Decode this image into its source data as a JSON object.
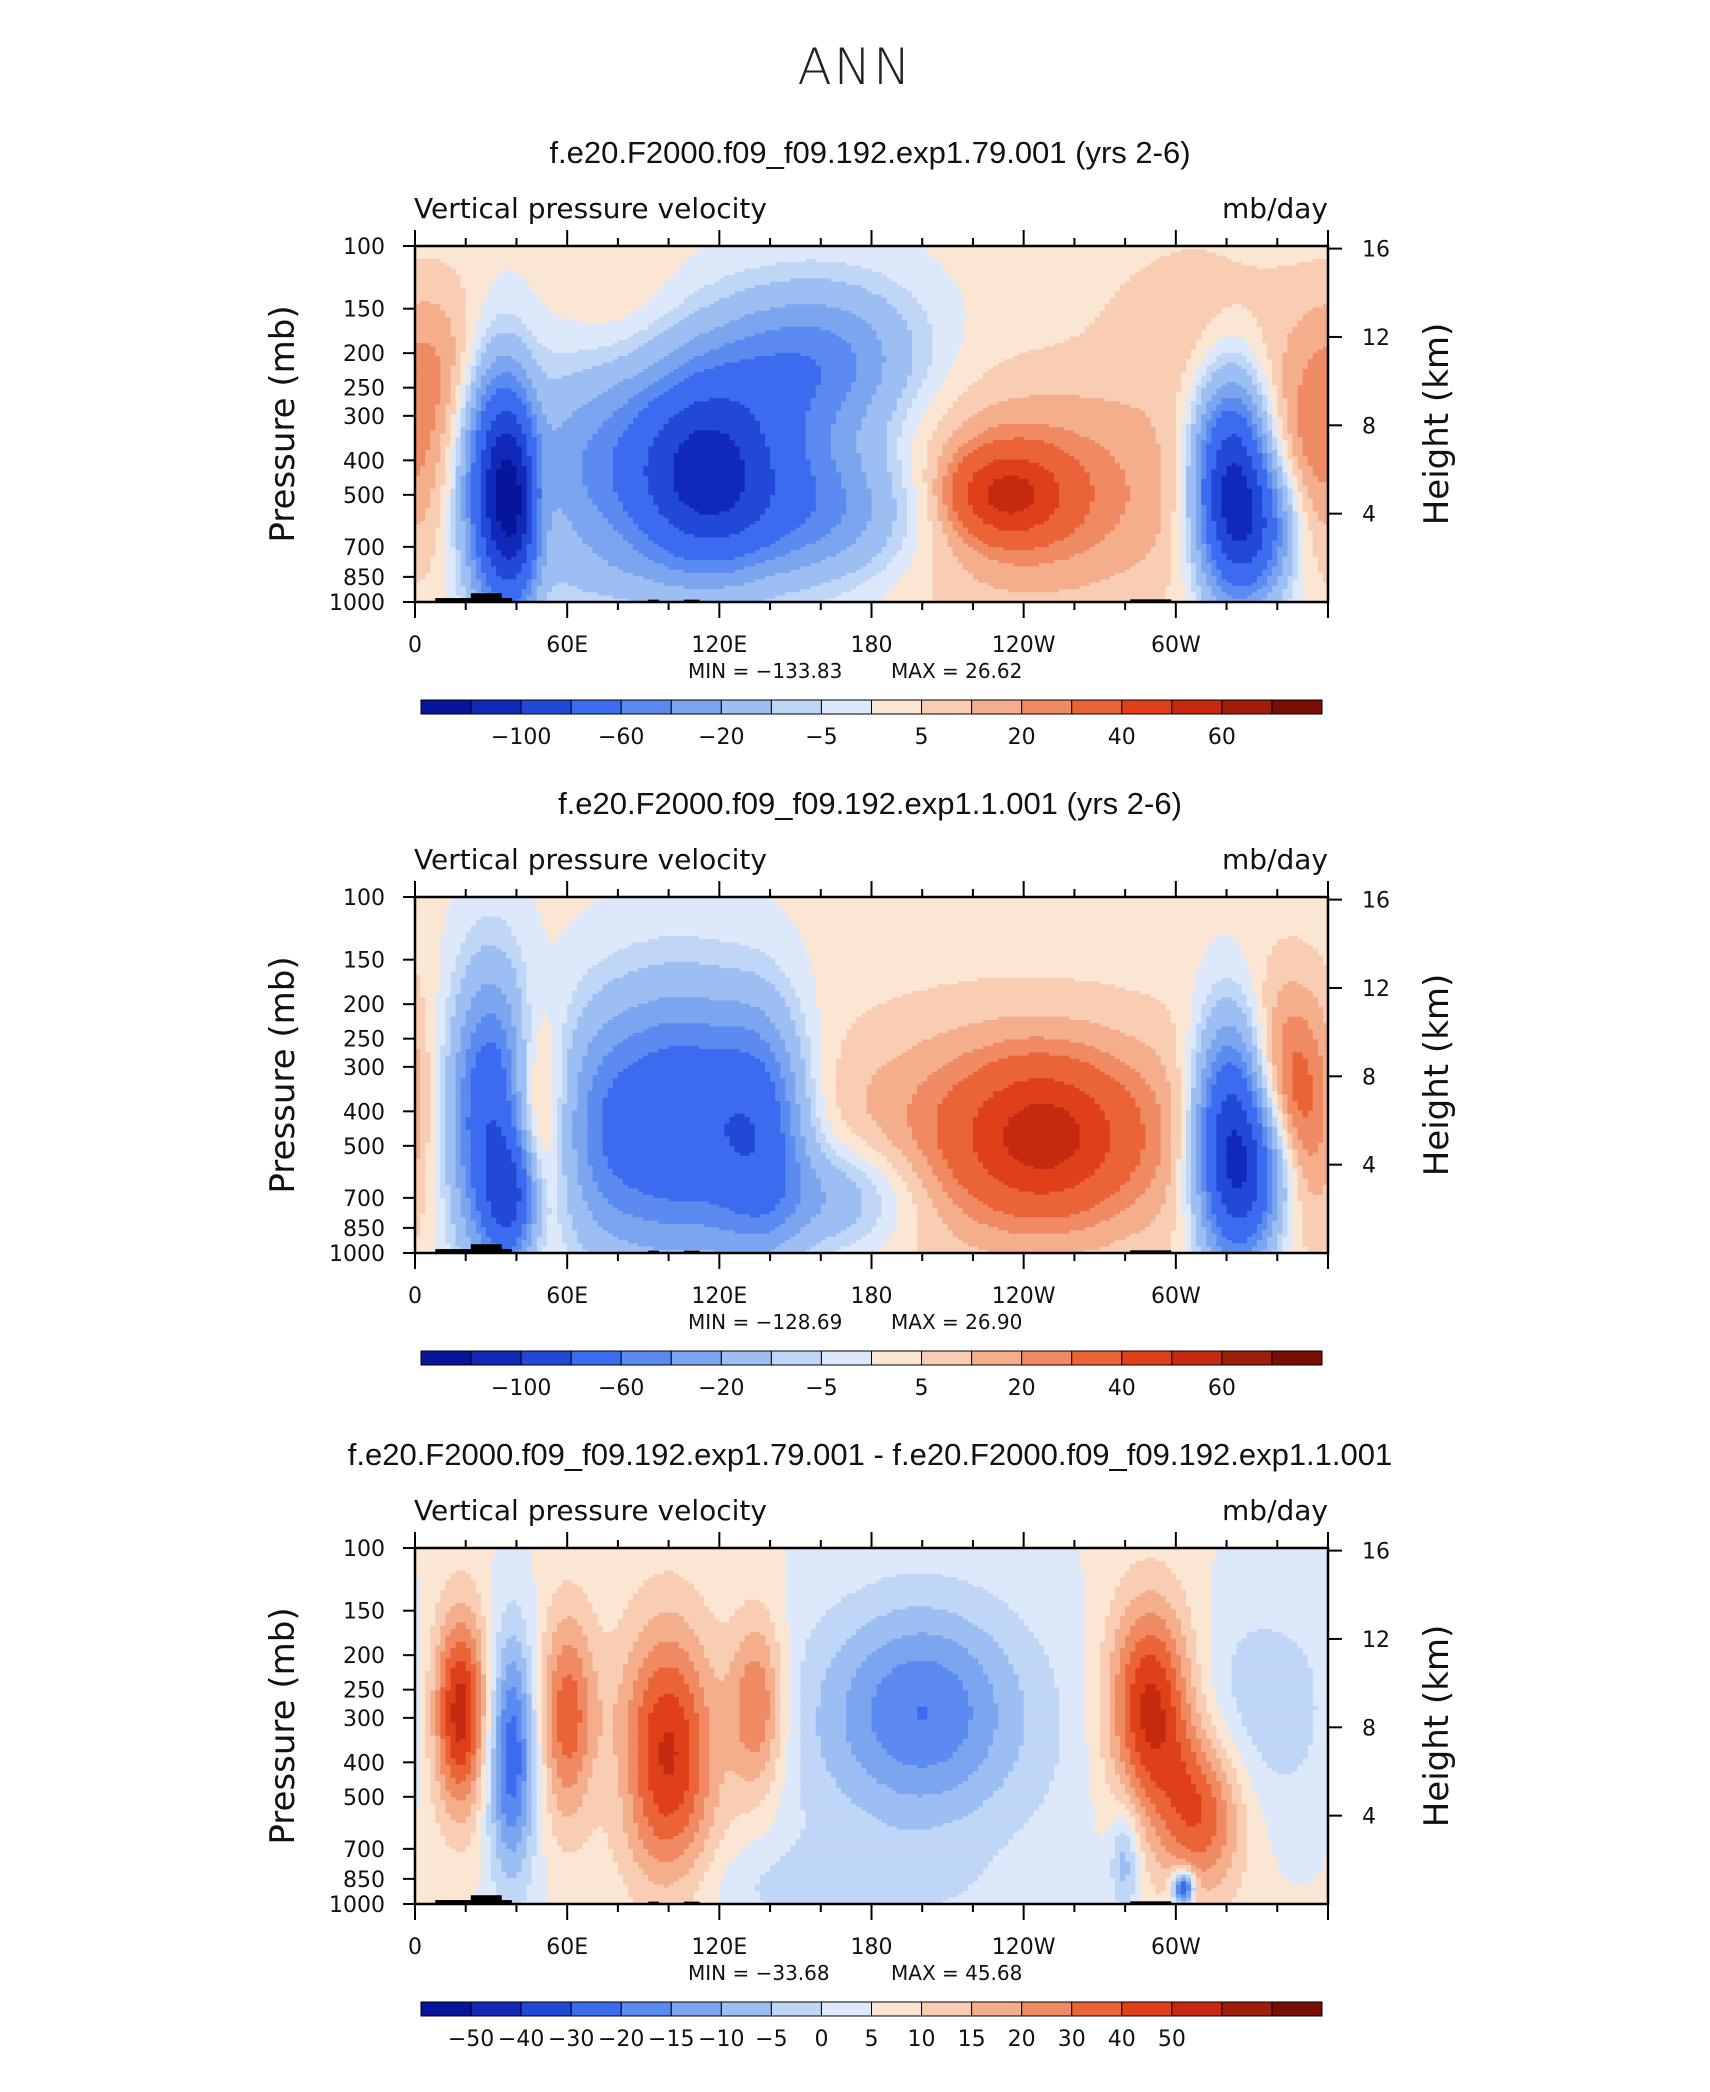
{
  "figure_title": "ANN",
  "colors": {
    "positive_scale": [
      "#fbe6d3",
      "#f8cdb3",
      "#f4ae8c",
      "#ef8a63",
      "#ea6437",
      "#e04019",
      "#c52a10",
      "#9e1e0a",
      "#780e04"
    ],
    "negative_scale": [
      "#dde9fb",
      "#bfd6f7",
      "#9cbef2",
      "#7ba5ee",
      "#5b8af0",
      "#3b6cf0",
      "#2248d8",
      "#1129b8",
      "#07159a"
    ],
    "topography": "#000000"
  },
  "chart_data": [
    {
      "type": "heatmap",
      "title": "f.e20.F2000.f09_f09.192.exp1.79.001 (yrs 2-6)",
      "variable": "Vertical pressure velocity",
      "units": "mb/day",
      "ylabel_left": "Pressure (mb)",
      "ylabel_right": "Height (km)",
      "pressure_ticks": [
        "100",
        "150",
        "200",
        "250",
        "300",
        "400",
        "500",
        "700",
        "850",
        "1000"
      ],
      "pressure_values": [
        100,
        150,
        200,
        250,
        300,
        400,
        500,
        700,
        850,
        1000
      ],
      "height_ticks": [
        "16",
        "12",
        "8",
        "4"
      ],
      "height_values": [
        16,
        12,
        8,
        4
      ],
      "lon_ticks": [
        "0",
        "60E",
        "120E",
        "180",
        "120W",
        "60W"
      ],
      "lon_values": [
        0,
        60,
        120,
        180,
        240,
        300
      ],
      "xlim": [
        0,
        360
      ],
      "ylim": [
        1000,
        100
      ],
      "min_text": "MIN  =  −133.83",
      "max_text": "MAX  =    26.62",
      "min": -133.83,
      "max": 26.62,
      "colorbar_labels": [
        "−100",
        "−60",
        "−20",
        "−5",
        "5",
        "20",
        "40",
        "60"
      ],
      "blobs": [
        {
          "lon": 33,
          "p": 480,
          "dl": 9,
          "dp": 330,
          "v": -78
        },
        {
          "lon": 42,
          "p": 560,
          "dl": 7,
          "dp": 270,
          "v": -52
        },
        {
          "lon": 48,
          "p": 520,
          "dl": 6,
          "dp": 250,
          "v": 24
        },
        {
          "lon": 8,
          "p": 230,
          "dl": 16,
          "dp": 130,
          "v": 13
        },
        {
          "lon": 100,
          "p": 420,
          "dl": 42,
          "dp": 250,
          "v": -42
        },
        {
          "lon": 115,
          "p": 440,
          "dl": 17,
          "dp": 210,
          "v": -48
        },
        {
          "lon": 160,
          "p": 560,
          "dl": 32,
          "dp": 210,
          "v": -30
        },
        {
          "lon": 145,
          "p": 230,
          "dl": 30,
          "dp": 100,
          "v": -22
        },
        {
          "lon": 165,
          "p": 200,
          "dl": 26,
          "dp": 80,
          "v": -18
        },
        {
          "lon": 238,
          "p": 500,
          "dl": 52,
          "dp": 340,
          "v": 19
        },
        {
          "lon": 233,
          "p": 500,
          "dl": 16,
          "dp": 110,
          "v": 27
        },
        {
          "lon": 322,
          "p": 480,
          "dl": 10,
          "dp": 280,
          "v": -92
        },
        {
          "lon": 335,
          "p": 630,
          "dl": 10,
          "dp": 230,
          "v": -40
        },
        {
          "lon": 348,
          "p": 450,
          "dl": 20,
          "dp": 280,
          "v": 15
        },
        {
          "lon": 83,
          "p": 160,
          "dl": 18,
          "dp": 60,
          "v": 5
        },
        {
          "lon": 310,
          "p": 160,
          "dl": 28,
          "dp": 80,
          "v": 7
        },
        {
          "lon": 75,
          "p": 830,
          "dl": 22,
          "dp": 150,
          "v": -5
        }
      ]
    },
    {
      "type": "heatmap",
      "title": "f.e20.F2000.f09_f09.192.exp1.1.001 (yrs 2-6)",
      "variable": "Vertical pressure velocity",
      "units": "mb/day",
      "ylabel_left": "Pressure (mb)",
      "ylabel_right": "Height (km)",
      "pressure_ticks": [
        "100",
        "150",
        "200",
        "250",
        "300",
        "400",
        "500",
        "700",
        "850",
        "1000"
      ],
      "pressure_values": [
        100,
        150,
        200,
        250,
        300,
        400,
        500,
        700,
        850,
        1000
      ],
      "height_ticks": [
        "16",
        "12",
        "8",
        "4"
      ],
      "height_values": [
        16,
        12,
        8,
        4
      ],
      "lon_ticks": [
        "0",
        "60E",
        "120E",
        "180",
        "120W",
        "60W"
      ],
      "lon_values": [
        0,
        60,
        120,
        180,
        240,
        300
      ],
      "xlim": [
        0,
        360
      ],
      "ylim": [
        1000,
        100
      ],
      "min_text": "MIN  =  −128.69",
      "max_text": "MAX  =    26.90",
      "min": -128.69,
      "max": 26.9,
      "colorbar_labels": [
        "−100",
        "−60",
        "−20",
        "−5",
        "5",
        "20",
        "40",
        "60"
      ],
      "blobs": [
        {
          "lon": 30,
          "p": 420,
          "dl": 11,
          "dp": 360,
          "v": -60
        },
        {
          "lon": 38,
          "p": 700,
          "dl": 7,
          "dp": 220,
          "v": -50
        },
        {
          "lon": 47,
          "p": 430,
          "dl": 8,
          "dp": 260,
          "v": 24
        },
        {
          "lon": 75,
          "p": 450,
          "dl": 14,
          "dp": 330,
          "v": -30
        },
        {
          "lon": 105,
          "p": 430,
          "dl": 18,
          "dp": 330,
          "v": -56
        },
        {
          "lon": 136,
          "p": 450,
          "dl": 13,
          "dp": 320,
          "v": -48
        },
        {
          "lon": 165,
          "p": 700,
          "dl": 22,
          "dp": 200,
          "v": -22
        },
        {
          "lon": 240,
          "p": 470,
          "dl": 58,
          "dp": 360,
          "v": 19
        },
        {
          "lon": 248,
          "p": 470,
          "dl": 22,
          "dp": 180,
          "v": 26
        },
        {
          "lon": 342,
          "p": 390,
          "dl": 18,
          "dp": 300,
          "v": 25
        },
        {
          "lon": 322,
          "p": 480,
          "dl": 10,
          "dp": 330,
          "v": -88
        },
        {
          "lon": 333,
          "p": 620,
          "dl": 10,
          "dp": 240,
          "v": -38
        },
        {
          "lon": 6,
          "p": 400,
          "dl": 10,
          "dp": 250,
          "v": -4
        }
      ]
    },
    {
      "type": "heatmap",
      "title": "f.e20.F2000.f09_f09.192.exp1.79.001 - f.e20.F2000.f09_f09.192.exp1.1.001",
      "variable": "Vertical pressure velocity",
      "units": "mb/day",
      "ylabel_left": "Pressure (mb)",
      "ylabel_right": "Height (km)",
      "pressure_ticks": [
        "100",
        "150",
        "200",
        "250",
        "300",
        "400",
        "500",
        "700",
        "850",
        "1000"
      ],
      "pressure_values": [
        100,
        150,
        200,
        250,
        300,
        400,
        500,
        700,
        850,
        1000
      ],
      "height_ticks": [
        "16",
        "12",
        "8",
        "4"
      ],
      "height_values": [
        16,
        12,
        8,
        4
      ],
      "lon_ticks": [
        "0",
        "60E",
        "120E",
        "180",
        "120W",
        "60W"
      ],
      "lon_values": [
        0,
        60,
        120,
        180,
        240,
        300
      ],
      "xlim": [
        0,
        360
      ],
      "ylim": [
        1000,
        100
      ],
      "min_text": "MIN  =  −33.68",
      "max_text": "MAX  =    45.68",
      "min": -33.68,
      "max": 45.68,
      "colorbar_labels": [
        "−50",
        "−40",
        "−30",
        "−20",
        "−15",
        "−10",
        "−5",
        "0",
        "5",
        "10",
        "15",
        "20",
        "30",
        "40",
        "50"
      ],
      "blobs": [
        {
          "lon": 18,
          "p": 290,
          "dl": 8,
          "dp": 170,
          "v": 34
        },
        {
          "lon": 38,
          "p": 380,
          "dl": 7,
          "dp": 280,
          "v": -30
        },
        {
          "lon": 60,
          "p": 300,
          "dl": 8,
          "dp": 190,
          "v": 23
        },
        {
          "lon": 100,
          "p": 380,
          "dl": 14,
          "dp": 320,
          "v": 32
        },
        {
          "lon": 135,
          "p": 280,
          "dl": 8,
          "dp": 150,
          "v": 22
        },
        {
          "lon": 76,
          "p": 460,
          "dl": 10,
          "dp": 120,
          "v": -2
        },
        {
          "lon": 200,
          "p": 280,
          "dl": 26,
          "dp": 170,
          "v": -19
        },
        {
          "lon": 195,
          "p": 360,
          "dl": 55,
          "dp": 360,
          "v": -7
        },
        {
          "lon": 290,
          "p": 280,
          "dl": 12,
          "dp": 180,
          "v": 33
        },
        {
          "lon": 310,
          "p": 560,
          "dl": 12,
          "dp": 260,
          "v": 24
        },
        {
          "lon": 335,
          "p": 280,
          "dl": 22,
          "dp": 180,
          "v": -9
        },
        {
          "lon": 303,
          "p": 900,
          "dl": 3,
          "dp": 70,
          "v": -40
        },
        {
          "lon": 280,
          "p": 750,
          "dl": 4,
          "dp": 200,
          "v": -14
        },
        {
          "lon": 160,
          "p": 900,
          "dl": 40,
          "dp": 200,
          "v": -6
        }
      ]
    }
  ]
}
